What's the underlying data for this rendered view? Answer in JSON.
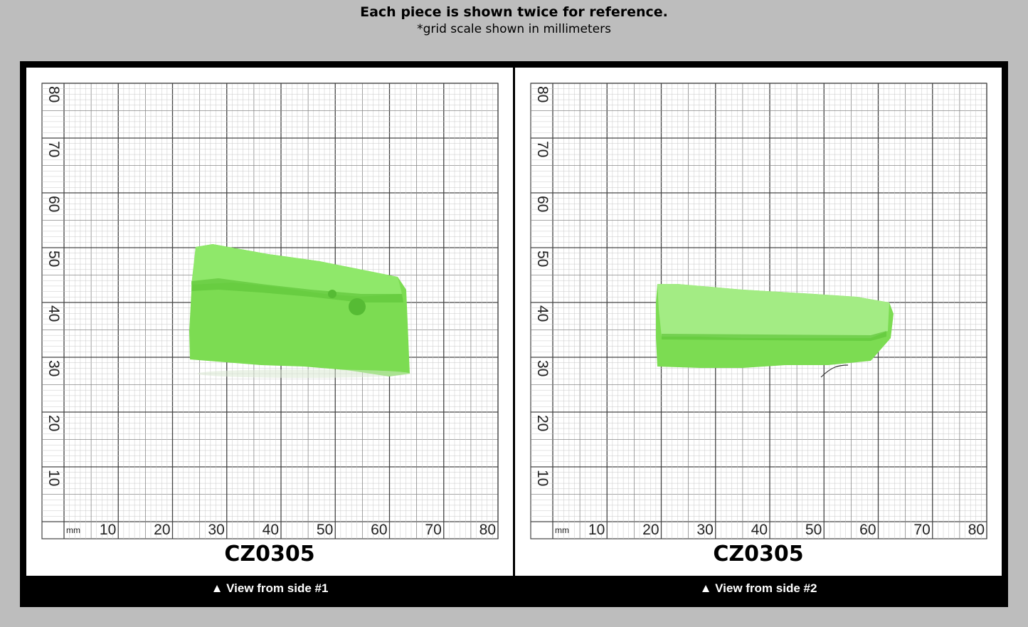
{
  "header": {
    "line1": "Each piece is shown twice for reference.",
    "line2": "*grid scale shown in millimeters"
  },
  "grid": {
    "unit_label": "mm",
    "x_labels": [
      "10",
      "20",
      "30",
      "40",
      "50",
      "60",
      "70",
      "80"
    ],
    "y_labels": [
      "10",
      "20",
      "30",
      "40",
      "50",
      "60",
      "70",
      "80"
    ],
    "line_color": "#444444"
  },
  "panels": [
    {
      "code": "CZ0305",
      "caption": "▲ View from side #1",
      "stone_color": "#7ddd55"
    },
    {
      "code": "CZ0305",
      "caption": "▲ View from side #2",
      "stone_color": "#7ddd55"
    }
  ]
}
